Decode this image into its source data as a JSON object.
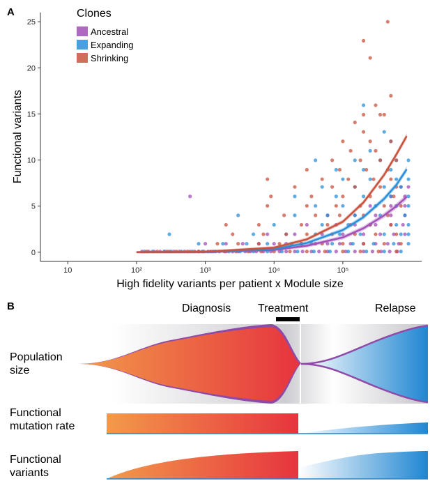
{
  "panel_a": {
    "letter": "A",
    "ylabel": "Functional variants",
    "xlabel": "High fidelity variants per patient x Module size",
    "legend": {
      "title": "Clones",
      "items": [
        {
          "label": "Ancestral",
          "color": "#a24fb6"
        },
        {
          "label": "Expanding",
          "color": "#2a8fd8"
        },
        {
          "label": "Shrinking",
          "color": "#c8533f"
        }
      ]
    },
    "x_ticks": [
      {
        "label": "10",
        "value": 10
      },
      {
        "label": "10²",
        "value": 100
      },
      {
        "label": "10³",
        "value": 1000
      },
      {
        "label": "10⁴",
        "value": 10000
      },
      {
        "label": "10⁵",
        "value": 100000
      }
    ],
    "y_ticks": [
      0,
      5,
      10,
      15,
      20,
      25
    ]
  },
  "chart_data": {
    "type": "scatter",
    "x_scale": "log",
    "xlim": [
      4,
      1400000
    ],
    "ylim": [
      -1,
      26
    ],
    "xlabel": "High fidelity variants per patient x Module size",
    "ylabel": "Functional variants",
    "grid": false,
    "legend_position": "top-left",
    "series": [
      {
        "name": "Ancestral",
        "color": "#a24fb6",
        "points": [
          [
            120,
            0
          ],
          [
            150,
            0
          ],
          [
            180,
            0
          ],
          [
            220,
            0
          ],
          [
            260,
            0
          ],
          [
            300,
            0
          ],
          [
            350,
            0
          ],
          [
            420,
            0
          ],
          [
            500,
            0
          ],
          [
            600,
            0
          ],
          [
            700,
            0
          ],
          [
            800,
            0
          ],
          [
            950,
            0
          ],
          [
            1100,
            0
          ],
          [
            1300,
            0
          ],
          [
            1600,
            0
          ],
          [
            2000,
            0
          ],
          [
            2500,
            0
          ],
          [
            3000,
            0
          ],
          [
            3800,
            0
          ],
          [
            4500,
            0
          ],
          [
            5500,
            0
          ],
          [
            7000,
            0
          ],
          [
            9000,
            0
          ],
          [
            12000,
            0
          ],
          [
            15000,
            0
          ],
          [
            20000,
            0
          ],
          [
            26000,
            0
          ],
          [
            35000,
            0
          ],
          [
            45000,
            0
          ],
          [
            60000,
            0
          ],
          [
            80000,
            0
          ],
          [
            110000,
            0
          ],
          [
            150000,
            0
          ],
          [
            200000,
            0
          ],
          [
            270000,
            0
          ],
          [
            360000,
            0
          ],
          [
            480000,
            0
          ],
          [
            620000,
            0
          ],
          [
            600,
            6
          ],
          [
            1000,
            1
          ],
          [
            2000,
            1
          ],
          [
            3500,
            1
          ],
          [
            6000,
            1
          ],
          [
            10000,
            1
          ],
          [
            15000,
            1
          ],
          [
            25000,
            1
          ],
          [
            40000,
            1
          ],
          [
            60000,
            1
          ],
          [
            90000,
            1
          ],
          [
            130000,
            1
          ],
          [
            200000,
            1
          ],
          [
            300000,
            1
          ],
          [
            450000,
            1
          ],
          [
            650000,
            1
          ],
          [
            8000,
            2
          ],
          [
            20000,
            2
          ],
          [
            50000,
            2
          ],
          [
            100000,
            2
          ],
          [
            200000,
            2
          ],
          [
            350000,
            2
          ],
          [
            550000,
            2
          ],
          [
            800000,
            2
          ],
          [
            30000,
            3
          ],
          [
            80000,
            3
          ],
          [
            150000,
            3
          ],
          [
            300000,
            3
          ],
          [
            500000,
            3
          ],
          [
            750000,
            3
          ],
          [
            60000,
            4
          ],
          [
            150000,
            4
          ],
          [
            300000,
            4
          ],
          [
            500000,
            4
          ],
          [
            800000,
            4
          ],
          [
            250000,
            5
          ],
          [
            500000,
            5
          ],
          [
            800000,
            5
          ],
          [
            500000,
            6
          ],
          [
            800000,
            6
          ],
          [
            700000,
            7
          ],
          [
            900000,
            7
          ]
        ],
        "fit": [
          [
            100,
            0
          ],
          [
            1000,
            0.02
          ],
          [
            10000,
            0.25
          ],
          [
            30000,
            0.7
          ],
          [
            100000,
            1.6
          ],
          [
            200000,
            2.6
          ],
          [
            400000,
            4.0
          ],
          [
            600000,
            5.0
          ],
          [
            850000,
            6.0
          ]
        ]
      },
      {
        "name": "Expanding",
        "color": "#2a8fd8",
        "points": [
          [
            130,
            0
          ],
          [
            170,
            0
          ],
          [
            250,
            0
          ],
          [
            320,
            0
          ],
          [
            450,
            0
          ],
          [
            650,
            0
          ],
          [
            900,
            0
          ],
          [
            1400,
            0
          ],
          [
            2200,
            0
          ],
          [
            3200,
            0
          ],
          [
            5000,
            0
          ],
          [
            8000,
            0
          ],
          [
            13000,
            0
          ],
          [
            22000,
            0
          ],
          [
            38000,
            0
          ],
          [
            65000,
            0
          ],
          [
            120000,
            0
          ],
          [
            220000,
            0
          ],
          [
            400000,
            0
          ],
          [
            700000,
            0
          ],
          [
            800,
            1
          ],
          [
            1800,
            1
          ],
          [
            4000,
            1
          ],
          [
            8000,
            1
          ],
          [
            18000,
            1
          ],
          [
            35000,
            1
          ],
          [
            70000,
            1
          ],
          [
            140000,
            1
          ],
          [
            280000,
            1
          ],
          [
            550000,
            1
          ],
          [
            900000,
            1
          ],
          [
            300,
            2
          ],
          [
            5000,
            2
          ],
          [
            15000,
            2
          ],
          [
            40000,
            2
          ],
          [
            90000,
            2
          ],
          [
            180000,
            2
          ],
          [
            400000,
            2
          ],
          [
            700000,
            2
          ],
          [
            900000,
            2
          ],
          [
            10000,
            3
          ],
          [
            50000,
            3
          ],
          [
            120000,
            3
          ],
          [
            250000,
            3
          ],
          [
            600000,
            3
          ],
          [
            900000,
            3
          ],
          [
            3000,
            4
          ],
          [
            20000,
            4
          ],
          [
            60000,
            4
          ],
          [
            150000,
            4
          ],
          [
            350000,
            4
          ],
          [
            800000,
            4
          ],
          [
            40000,
            5
          ],
          [
            100000,
            5
          ],
          [
            300000,
            5
          ],
          [
            600000,
            5
          ],
          [
            900000,
            5
          ],
          [
            20000,
            6
          ],
          [
            80000,
            6
          ],
          [
            200000,
            6
          ],
          [
            500000,
            6
          ],
          [
            900000,
            6
          ],
          [
            50000,
            7
          ],
          [
            150000,
            7
          ],
          [
            400000,
            7
          ],
          [
            700000,
            7
          ],
          [
            100000,
            8
          ],
          [
            250000,
            8
          ],
          [
            600000,
            8
          ],
          [
            900000,
            8
          ],
          [
            80000,
            9
          ],
          [
            200000,
            9
          ],
          [
            500000,
            9
          ],
          [
            40000,
            10
          ],
          [
            150000,
            10
          ],
          [
            350000,
            10
          ],
          [
            600000,
            10
          ],
          [
            900000,
            10
          ],
          [
            250000,
            11
          ],
          [
            500000,
            12
          ],
          [
            400000,
            13
          ],
          [
            200000,
            16
          ]
        ],
        "fit": [
          [
            100,
            0
          ],
          [
            1000,
            0.03
          ],
          [
            10000,
            0.35
          ],
          [
            30000,
            1.0
          ],
          [
            100000,
            2.4
          ],
          [
            200000,
            3.8
          ],
          [
            400000,
            5.8
          ],
          [
            600000,
            7.3
          ],
          [
            850000,
            9.0
          ]
        ]
      },
      {
        "name": "Shrinking",
        "color": "#c8533f",
        "points": [
          [
            140,
            0
          ],
          [
            200,
            0
          ],
          [
            280,
            0
          ],
          [
            380,
            0
          ],
          [
            550,
            0
          ],
          [
            800,
            0
          ],
          [
            1200,
            0
          ],
          [
            1900,
            0
          ],
          [
            2800,
            0
          ],
          [
            4200,
            0
          ],
          [
            6500,
            0
          ],
          [
            10000,
            0
          ],
          [
            17000,
            0
          ],
          [
            30000,
            0
          ],
          [
            55000,
            0
          ],
          [
            100000,
            0
          ],
          [
            180000,
            0
          ],
          [
            330000,
            0
          ],
          [
            600000,
            0
          ],
          [
            1500,
            1
          ],
          [
            3000,
            1
          ],
          [
            6000,
            1
          ],
          [
            12000,
            1
          ],
          [
            25000,
            1
          ],
          [
            50000,
            1
          ],
          [
            100000,
            1
          ],
          [
            200000,
            1
          ],
          [
            400000,
            1
          ],
          [
            700000,
            1
          ],
          [
            2500,
            2
          ],
          [
            7000,
            2
          ],
          [
            15000,
            2
          ],
          [
            30000,
            2
          ],
          [
            70000,
            2
          ],
          [
            150000,
            2
          ],
          [
            300000,
            2
          ],
          [
            600000,
            2
          ],
          [
            2000,
            3
          ],
          [
            6000,
            3
          ],
          [
            25000,
            3
          ],
          [
            60000,
            3
          ],
          [
            130000,
            3
          ],
          [
            250000,
            3
          ],
          [
            500000,
            3
          ],
          [
            14000,
            4
          ],
          [
            40000,
            4
          ],
          [
            90000,
            4
          ],
          [
            200000,
            4
          ],
          [
            450000,
            4
          ],
          [
            8000,
            5
          ],
          [
            30000,
            5
          ],
          [
            80000,
            5
          ],
          [
            180000,
            5
          ],
          [
            400000,
            5
          ],
          [
            700000,
            5
          ],
          [
            9000,
            6
          ],
          [
            35000,
            6
          ],
          [
            100000,
            6
          ],
          [
            250000,
            6
          ],
          [
            550000,
            6
          ],
          [
            20000,
            7
          ],
          [
            70000,
            7
          ],
          [
            150000,
            7
          ],
          [
            350000,
            7
          ],
          [
            600000,
            7
          ],
          [
            50000,
            8
          ],
          [
            120000,
            8
          ],
          [
            280000,
            8
          ],
          [
            500000,
            8
          ],
          [
            8000,
            8
          ],
          [
            30000,
            9
          ],
          [
            90000,
            9
          ],
          [
            220000,
            9
          ],
          [
            450000,
            9
          ],
          [
            70000,
            10
          ],
          [
            180000,
            10
          ],
          [
            350000,
            10
          ],
          [
            600000,
            10
          ],
          [
            130000,
            11
          ],
          [
            300000,
            11
          ],
          [
            100000,
            12
          ],
          [
            250000,
            12
          ],
          [
            500000,
            12
          ],
          [
            200000,
            13
          ],
          [
            150000,
            14
          ],
          [
            350000,
            15
          ],
          [
            200000,
            15
          ],
          [
            400000,
            15
          ],
          [
            300000,
            16
          ],
          [
            500000,
            17
          ],
          [
            250000,
            21
          ],
          [
            200000,
            23
          ],
          [
            450000,
            25
          ]
        ],
        "fit": [
          [
            100,
            0
          ],
          [
            1000,
            0.05
          ],
          [
            10000,
            0.5
          ],
          [
            30000,
            1.4
          ],
          [
            100000,
            3.3
          ],
          [
            200000,
            5.4
          ],
          [
            400000,
            8.4
          ],
          [
            600000,
            10.6
          ],
          [
            850000,
            12.6
          ]
        ]
      }
    ]
  },
  "panel_b": {
    "letter": "B",
    "stages": {
      "diagnosis": "Diagnosis",
      "treatment": "Treatment",
      "relapse": "Relapse"
    },
    "rows": {
      "population": "Population\nsize",
      "mutation_rate": "Functional\nmutation rate",
      "variants": "Functional\nvariants"
    },
    "colors": {
      "red": "#e63b3d",
      "orange": "#f08a40",
      "blue": "#1f86d2",
      "purple": "#8e4aa6",
      "gray": "#c7c7cc"
    }
  }
}
